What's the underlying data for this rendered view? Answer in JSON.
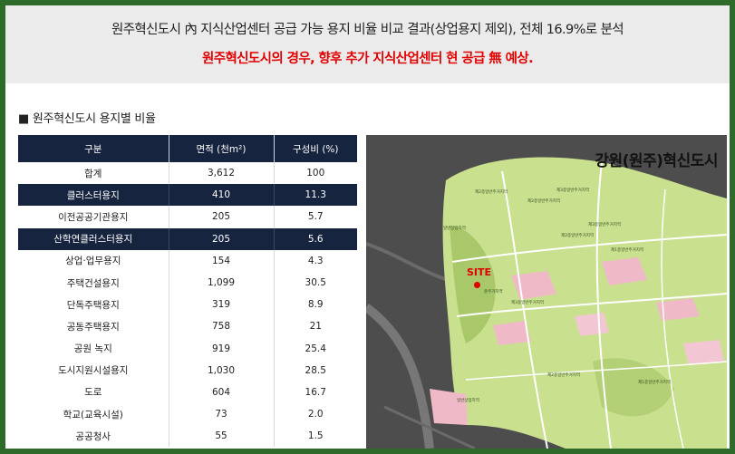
{
  "header": {
    "line1": "원주혁신도시 內 지식산업센터 공급 가능 용지 비율 비교 결과(상업용지 제외), 전체 16.9%로 분석",
    "line2": "원주혁신도시의 경우, 향후 추가 지식산업센터 현 공급 無 예상."
  },
  "section_title": "■ 원주혁신도시 용지별 비율",
  "table": {
    "headers": [
      "구분",
      "면적 (천m²)",
      "구성비 (%)"
    ],
    "rows": [
      {
        "name": "합계",
        "area": "3,612",
        "ratio": "100",
        "highlight": false
      },
      {
        "name": "클러스터용지",
        "area": "410",
        "ratio": "11.3",
        "highlight": true
      },
      {
        "name": "이전공공기관용지",
        "area": "205",
        "ratio": "5.7",
        "highlight": false
      },
      {
        "name": "산학연클러스터용지",
        "area": "205",
        "ratio": "5.6",
        "highlight": true
      },
      {
        "name": "상업·업무용지",
        "area": "154",
        "ratio": "4.3",
        "highlight": false
      },
      {
        "name": "주택건설용지",
        "area": "1,099",
        "ratio": "30.5",
        "highlight": false
      },
      {
        "name": "단독주택용지",
        "area": "319",
        "ratio": "8.9",
        "highlight": false
      },
      {
        "name": "공동주택용지",
        "area": "758",
        "ratio": "21",
        "highlight": false
      },
      {
        "name": "공원  녹지",
        "area": "919",
        "ratio": "25.4",
        "highlight": false
      },
      {
        "name": "도시지원시설용지",
        "area": "1,030",
        "ratio": "28.5",
        "highlight": false
      },
      {
        "name": "도로",
        "area": "604",
        "ratio": "16.7",
        "highlight": false
      },
      {
        "name": "학교(교육시설)",
        "area": "73",
        "ratio": "2.0",
        "highlight": false
      },
      {
        "name": "공공청사",
        "area": "55",
        "ratio": "1.5",
        "highlight": false
      }
    ]
  },
  "map": {
    "title": "강원(원주)혁신도시",
    "site_label": "SITE",
    "zones": [
      "제2종일반주거지역",
      "제3종일반주거지역",
      "제2종일반주거지역",
      "일반상업지역",
      "제3종일반주거지역",
      "제2종일반주거지역",
      "제1종일반주거지역",
      "준주거지역",
      "제3종일반주거지역",
      "일반상업지역",
      "제2종일반주거지역",
      "제1종일반주거지역"
    ]
  },
  "colors": {
    "frame": "#2e6b2a",
    "header_bg": "#ebebeb",
    "highlight_red": "#e00000",
    "table_header": "#16243f",
    "map_green": "#c9e08f"
  }
}
